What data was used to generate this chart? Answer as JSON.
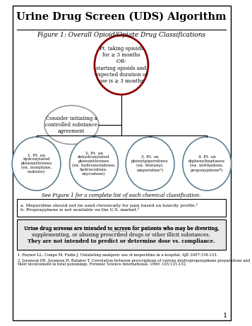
{
  "title": "Urine Drug Screen (UDS) Algorithm",
  "figure_label": "Figure 1: Overall Opioid/Opiate Drug Classifications",
  "top_circle_text": "Pt. taking opioids\nfor ≥ 3 months\n-OR-\nstarting opioids and\nexpected duration of\nuse is ≥ 3 months",
  "middle_ellipse_text": "Consider initiating a\ncontrolled substance\nagreement",
  "bottom_circles": [
    {
      "label": "1. Pt. on\nhydroxylated\nphenanthrenes\n(ex. morphine,\ncodeine)"
    },
    {
      "label": "2. Pt. on\ndehydroxylated\nphenanthrenes\n(ex. hydromorphone,\nhydrocodone,\noxycodone)"
    },
    {
      "label": "3. Pt. on\nphenylpiperidines\n(ex. fentanyl,\nmeperidineᵃ)"
    },
    {
      "label": "4. Pt. on\ndiphenylheptanes\n(ex. methadone,\npropoxypheneᵇ)"
    }
  ],
  "see_figure_text": "See Figure 1 for a complete list of each chemical classification.",
  "footnote_box_text": "a. Meperidine should not be used chronically for pain based on toxicity profile.¹\nb. Propoxyphene is not available on the U.S. market.²",
  "bottom_box_text1": "Urine drug screens are intended to screen for patients who may be diverting,",
  "bottom_box_text2": "supplementing, or abusing prescribed drugs or other illicit substances.",
  "bottom_box_text3": "They are not intended to predict or determine dose vs. compliance.",
  "footnote1": "1. Raynor LL, Compo M, Fudin J. Unlabeling analgesic use of meperidine in a hospital. AJP. 2007;158-153.",
  "footnote2": "2. Joranson DE, Joranson H, Balaber T. Correlation between prescriptions of various dextropropoxyphene preparations and their involvement in fatal poisonings. Forensic Science International. 1990; 105:125-132.",
  "page_num": "1",
  "top_circle_color": "#8B0000",
  "bottom_circle_color": "#5F7F8F",
  "middle_ellipse_color": "#999999",
  "bg_color": "#FFFFFF"
}
